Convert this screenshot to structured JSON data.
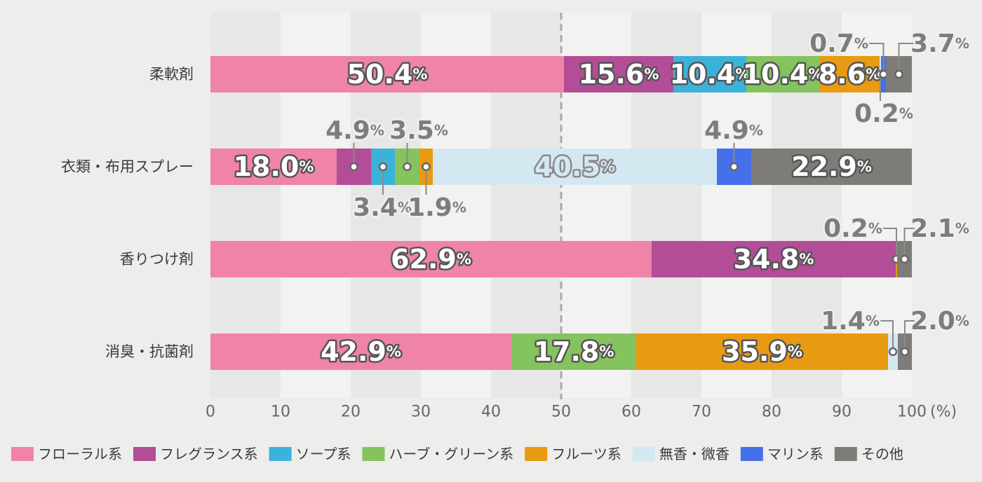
{
  "chart_data": {
    "type": "bar",
    "stacked": true,
    "orientation": "horizontal",
    "categories": [
      "柔軟剤",
      "衣類・布用スプレー",
      "香りつけ剤",
      "消臭・抗菌剤"
    ],
    "series": [
      {
        "name": "フローラル系",
        "color": "#f083a8",
        "values": [
          50.4,
          18.0,
          62.9,
          42.9
        ]
      },
      {
        "name": "フレグランス系",
        "color": "#b34d98",
        "values": [
          15.6,
          4.9,
          34.8,
          0
        ]
      },
      {
        "name": "ソープ系",
        "color": "#3bb2da",
        "values": [
          10.4,
          3.4,
          0,
          0
        ]
      },
      {
        "name": "ハーブ・グリーン系",
        "color": "#84c35e",
        "values": [
          10.4,
          3.5,
          0,
          17.8
        ]
      },
      {
        "name": "フルーツ系",
        "color": "#e89a12",
        "values": [
          8.6,
          1.9,
          0.2,
          35.9
        ]
      },
      {
        "name": "無香・微香",
        "color": "#d4e8f2",
        "values": [
          0.2,
          40.5,
          0,
          1.4
        ]
      },
      {
        "name": "マリン系",
        "color": "#4670ea",
        "values": [
          0.7,
          4.9,
          0,
          0
        ]
      },
      {
        "name": "その他",
        "color": "#7e7c78",
        "values": [
          3.7,
          22.9,
          2.1,
          2.0
        ]
      }
    ],
    "value_labels": [
      [
        "50.4",
        "15.6",
        "10.4",
        "10.4",
        "8.6",
        "0.2",
        "0.7",
        "3.7"
      ],
      [
        "18.0",
        "4.9",
        "3.4",
        "3.5",
        "1.9",
        "40.5",
        "4.9",
        "22.9"
      ],
      [
        "62.9",
        "34.8",
        "",
        "",
        "0.2",
        "",
        "",
        "2.1"
      ],
      [
        "42.9",
        "",
        "",
        "17.8",
        "35.9",
        "1.4",
        "",
        "2.0"
      ]
    ],
    "percent_sign": "%",
    "x_ticks": [
      "0",
      "10",
      "20",
      "30",
      "40",
      "50",
      "60",
      "70",
      "80",
      "90",
      "100"
    ],
    "x_unit": "(%)",
    "xlim": [
      0,
      100
    ],
    "reference_line": 50,
    "legend_position": "bottom"
  }
}
